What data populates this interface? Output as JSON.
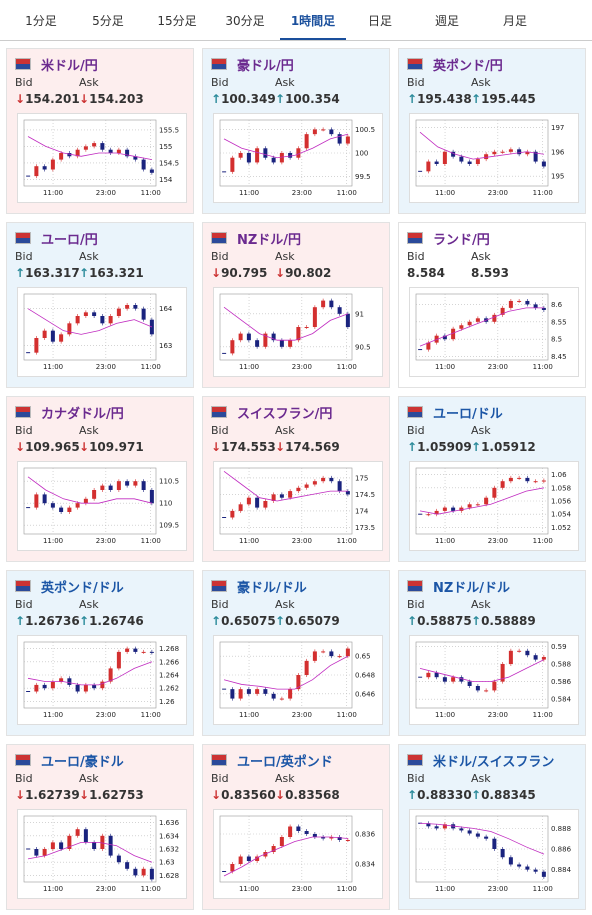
{
  "tabs": [
    "1分足",
    "5分足",
    "15分足",
    "30分足",
    "1時間足",
    "日足",
    "週足",
    "月足"
  ],
  "selected_tab": 4,
  "bid_label": "Bid",
  "ask_label": "Ask",
  "x_labels": [
    "11:00",
    "23:00",
    "11:00"
  ],
  "cards": [
    {
      "name": "米ドル/円",
      "bid": "↓154.201",
      "ask": "↓154.203",
      "chart": {
        "ylim": [
          153.8,
          155.8
        ],
        "yticks": [
          154,
          154.5,
          155,
          155.5
        ],
        "closes": [
          154.1,
          154.4,
          154.3,
          154.6,
          154.8,
          154.7,
          154.9,
          155.0,
          155.1,
          154.9,
          154.8,
          154.9,
          154.7,
          154.6,
          154.3,
          154.2
        ],
        "ma": [
          155.3,
          155.0,
          154.8,
          154.7,
          154.8,
          154.8,
          154.7,
          154.6
        ]
      }
    },
    {
      "name": "豪ドル/円",
      "bid": "↑100.349",
      "ask": "↑100.354",
      "chart": {
        "ylim": [
          99.3,
          100.7
        ],
        "yticks": [
          99.5,
          100,
          100.5
        ],
        "closes": [
          99.6,
          99.9,
          100.0,
          99.8,
          100.1,
          99.9,
          99.8,
          100.0,
          99.9,
          100.1,
          100.4,
          100.5,
          100.5,
          100.4,
          100.2,
          100.35
        ],
        "ma": [
          100.3,
          100.1,
          100.0,
          99.9,
          99.95,
          100.1,
          100.3,
          100.4
        ]
      }
    },
    {
      "name": "英ポンド/円",
      "bid": "↑195.438",
      "ask": "↑195.445",
      "chart": {
        "ylim": [
          194.6,
          197.3
        ],
        "yticks": [
          195,
          196,
          197
        ],
        "closes": [
          195.2,
          195.6,
          195.5,
          196.0,
          195.8,
          195.6,
          195.5,
          195.7,
          195.9,
          196.0,
          196.0,
          196.1,
          195.9,
          196.0,
          195.6,
          195.4
        ],
        "ma": [
          196.8,
          196.2,
          195.9,
          195.7,
          195.8,
          195.9,
          196.0,
          195.9
        ]
      }
    },
    {
      "name": "ユーロ/円",
      "bid": "↑163.317",
      "ask": "↑163.321",
      "chart": {
        "ylim": [
          162.6,
          164.4
        ],
        "yticks": [
          163,
          164
        ],
        "closes": [
          162.8,
          163.2,
          163.4,
          163.1,
          163.3,
          163.6,
          163.8,
          163.9,
          163.8,
          163.6,
          163.8,
          164.0,
          164.1,
          164.0,
          163.7,
          163.3
        ],
        "ma": [
          164.0,
          163.7,
          163.4,
          163.3,
          163.4,
          163.6,
          163.7,
          163.5
        ]
      }
    },
    {
      "name": "NZドル/円",
      "bid": "↓90.795",
      "ask": "↓90.802",
      "chart": {
        "ylim": [
          90.3,
          91.3
        ],
        "yticks": [
          90.5,
          91
        ],
        "closes": [
          90.4,
          90.6,
          90.7,
          90.6,
          90.5,
          90.7,
          90.6,
          90.5,
          90.6,
          90.8,
          90.8,
          91.1,
          91.2,
          91.1,
          91.0,
          90.8
        ],
        "ma": [
          91.1,
          90.9,
          90.7,
          90.6,
          90.6,
          90.7,
          90.9,
          91.0
        ]
      }
    },
    {
      "name": "ランド/円",
      "bid": "8.584",
      "ask": "8.593",
      "chart": {
        "ylim": [
          8.44,
          8.63
        ],
        "yticks": [
          8.45,
          8.5,
          8.55,
          8.6
        ],
        "closes": [
          8.47,
          8.49,
          8.51,
          8.5,
          8.53,
          8.54,
          8.55,
          8.56,
          8.55,
          8.57,
          8.59,
          8.61,
          8.61,
          8.6,
          8.59,
          8.584
        ],
        "ma": [
          8.48,
          8.5,
          8.52,
          8.54,
          8.56,
          8.58,
          8.59,
          8.59
        ]
      }
    },
    {
      "name": "カナダドル/円",
      "bid": "↓109.965",
      "ask": "↓109.971",
      "chart": {
        "ylim": [
          109.3,
          110.8
        ],
        "yticks": [
          109.5,
          110,
          110.5
        ],
        "closes": [
          109.9,
          110.2,
          110.0,
          109.9,
          109.8,
          109.9,
          110.0,
          110.1,
          110.3,
          110.4,
          110.3,
          110.5,
          110.4,
          110.5,
          110.3,
          110.0
        ],
        "ma": [
          110.6,
          110.3,
          110.1,
          110.0,
          110.0,
          110.1,
          110.1,
          110.0
        ]
      }
    },
    {
      "name": "スイスフラン/円",
      "bid": "↓174.553",
      "ask": "↓174.569",
      "chart": {
        "ylim": [
          173.3,
          175.3
        ],
        "yticks": [
          173.5,
          174,
          174.5,
          175
        ],
        "closes": [
          173.8,
          174.0,
          174.2,
          174.4,
          174.1,
          174.3,
          174.5,
          174.4,
          174.6,
          174.7,
          174.8,
          174.9,
          175.0,
          174.9,
          174.6,
          174.5
        ],
        "ma": [
          175.2,
          174.8,
          174.4,
          174.3,
          174.4,
          174.5,
          174.6,
          174.6
        ]
      }
    },
    {
      "name": "ユーロ/ドル",
      "bid": "↑1.05909",
      "ask": "↑1.05912",
      "chart": {
        "ylim": [
          1.051,
          1.061
        ],
        "yticks": [
          1.052,
          1.054,
          1.056,
          1.058,
          1.06
        ],
        "closes": [
          1.054,
          1.054,
          1.0545,
          1.055,
          1.0545,
          1.055,
          1.0555,
          1.0555,
          1.0565,
          1.058,
          1.059,
          1.0595,
          1.0595,
          1.059,
          1.059,
          1.0591
        ],
        "ma": [
          1.0545,
          1.054,
          1.0545,
          1.055,
          1.0555,
          1.0565,
          1.0575,
          1.058
        ]
      }
    },
    {
      "name": "英ポンド/ドル",
      "bid": "↑1.26736",
      "ask": "↑1.26746",
      "chart": {
        "ylim": [
          1.259,
          1.269
        ],
        "yticks": [
          1.26,
          1.262,
          1.264,
          1.266,
          1.268
        ],
        "closes": [
          1.2615,
          1.2625,
          1.262,
          1.263,
          1.2635,
          1.2625,
          1.2615,
          1.2625,
          1.262,
          1.263,
          1.265,
          1.2675,
          1.268,
          1.2675,
          1.2675,
          1.2674
        ],
        "ma": [
          1.2635,
          1.263,
          1.263,
          1.2625,
          1.2625,
          1.2635,
          1.265,
          1.266
        ]
      }
    },
    {
      "name": "豪ドル/ドル",
      "bid": "↑0.65075",
      "ask": "↑0.65079",
      "chart": {
        "ylim": [
          0.6445,
          0.6515
        ],
        "yticks": [
          0.646,
          0.648,
          0.65
        ],
        "closes": [
          0.6465,
          0.6455,
          0.6465,
          0.646,
          0.6465,
          0.646,
          0.6455,
          0.6455,
          0.6465,
          0.648,
          0.6495,
          0.6505,
          0.6505,
          0.65,
          0.65,
          0.6508
        ],
        "ma": [
          0.6475,
          0.647,
          0.6468,
          0.6465,
          0.6465,
          0.6475,
          0.649,
          0.65
        ]
      }
    },
    {
      "name": "NZドル/ドル",
      "bid": "↑0.58875",
      "ask": "↑0.58889",
      "chart": {
        "ylim": [
          0.583,
          0.5905
        ],
        "yticks": [
          0.584,
          0.586,
          0.588,
          0.59
        ],
        "closes": [
          0.5865,
          0.587,
          0.5865,
          0.586,
          0.5865,
          0.586,
          0.5855,
          0.585,
          0.585,
          0.586,
          0.588,
          0.5895,
          0.5895,
          0.589,
          0.5885,
          0.5888
        ],
        "ma": [
          0.5875,
          0.587,
          0.5865,
          0.586,
          0.586,
          0.5865,
          0.5875,
          0.5885
        ]
      }
    },
    {
      "name": "ユーロ/豪ドル",
      "bid": "↓1.62739",
      "ask": "↓1.62753",
      "chart": {
        "ylim": [
          1.627,
          1.637
        ],
        "yticks": [
          1.628,
          1.63,
          1.632,
          1.634,
          1.636
        ],
        "closes": [
          1.632,
          1.631,
          1.632,
          1.633,
          1.632,
          1.634,
          1.635,
          1.633,
          1.632,
          1.634,
          1.631,
          1.63,
          1.629,
          1.628,
          1.629,
          1.6274
        ],
        "ma": [
          1.6305,
          1.631,
          1.632,
          1.633,
          1.633,
          1.6325,
          1.631,
          1.63
        ]
      }
    },
    {
      "name": "ユーロ/英ポンド",
      "bid": "↓0.83560",
      "ask": "↓0.83568",
      "chart": {
        "ylim": [
          0.8328,
          0.8372
        ],
        "yticks": [
          0.834,
          0.836
        ],
        "closes": [
          0.8335,
          0.834,
          0.8345,
          0.8342,
          0.8345,
          0.8348,
          0.8352,
          0.8358,
          0.8365,
          0.8362,
          0.836,
          0.8358,
          0.8357,
          0.8358,
          0.8356,
          0.8356
        ],
        "ma": [
          0.8332,
          0.8338,
          0.8345,
          0.835,
          0.8355,
          0.8358,
          0.8358,
          0.8357
        ]
      }
    },
    {
      "name": "米ドル/スイスフラン",
      "bid": "↑0.88330",
      "ask": "↑0.88345",
      "chart": {
        "ylim": [
          0.8828,
          0.8892
        ],
        "yticks": [
          0.884,
          0.886,
          0.888
        ],
        "closes": [
          0.8885,
          0.8882,
          0.888,
          0.8884,
          0.888,
          0.8878,
          0.8875,
          0.8872,
          0.887,
          0.886,
          0.8852,
          0.8845,
          0.8843,
          0.884,
          0.8838,
          0.8833
        ],
        "ma": [
          0.8885,
          0.8884,
          0.8882,
          0.888,
          0.8877,
          0.887,
          0.8862,
          0.8855
        ]
      }
    }
  ]
}
